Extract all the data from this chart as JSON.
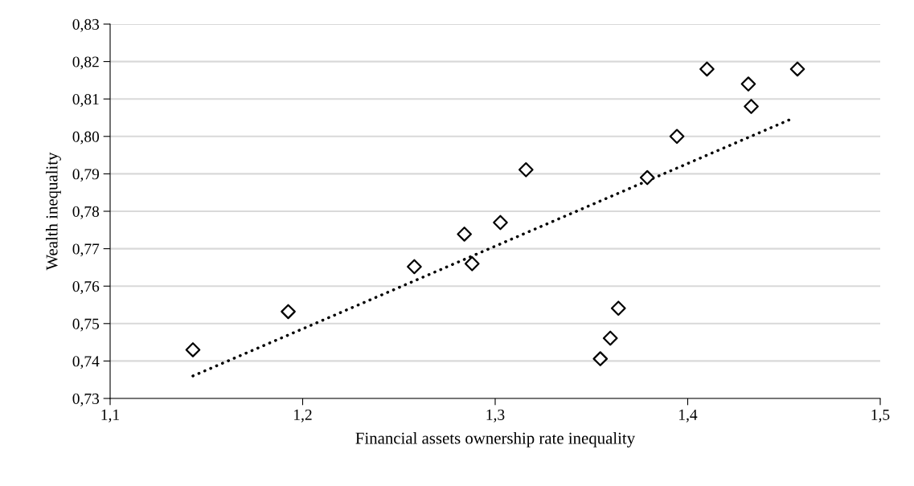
{
  "chart_data": {
    "type": "scatter",
    "xlabel": "Financial assets ownership rate inequality",
    "ylabel": "Wealth inequality",
    "xlim": [
      1.1,
      1.5
    ],
    "xticks": [
      {
        "value": 1.1,
        "label": "1,1"
      },
      {
        "value": 1.2,
        "label": "1,2"
      },
      {
        "value": 1.3,
        "label": "1,3"
      },
      {
        "value": 1.4,
        "label": "1,4"
      },
      {
        "value": 1.5,
        "label": "1,5"
      }
    ],
    "ylim": [
      0.73,
      0.83
    ],
    "yticks": [
      {
        "value": 0.73,
        "label": "0,73"
      },
      {
        "value": 0.74,
        "label": "0,74"
      },
      {
        "value": 0.75,
        "label": "0,75"
      },
      {
        "value": 0.76,
        "label": "0,76"
      },
      {
        "value": 0.77,
        "label": "0,77"
      },
      {
        "value": 0.78,
        "label": "0,78"
      },
      {
        "value": 0.79,
        "label": "0,79"
      },
      {
        "value": 0.8,
        "label": "0,80"
      },
      {
        "value": 0.81,
        "label": "0,81"
      },
      {
        "value": 0.82,
        "label": "0,82"
      },
      {
        "value": 0.83,
        "label": "0,83"
      }
    ],
    "grid": "y",
    "legend": false,
    "series": [
      {
        "marker": "diamond",
        "color": "#000000",
        "x": [
          1.143,
          1.1925,
          1.258,
          1.284,
          1.288,
          1.3027,
          1.316,
          1.379,
          1.3944,
          1.41,
          1.4315,
          1.433,
          1.457,
          1.364,
          1.3598,
          1.3546
        ],
        "values": [
          0.743,
          0.7532,
          0.7652,
          0.7739,
          0.766,
          0.777,
          0.7911,
          0.789,
          0.8,
          0.818,
          0.814,
          0.808,
          0.818,
          0.7541,
          0.7461,
          0.7406
        ]
      },
      {
        "type": "line",
        "line_style": "dotted",
        "color": "#000000",
        "x": [
          1.143,
          1.4545
        ],
        "values": [
          0.736,
          0.8048
        ]
      }
    ]
  }
}
